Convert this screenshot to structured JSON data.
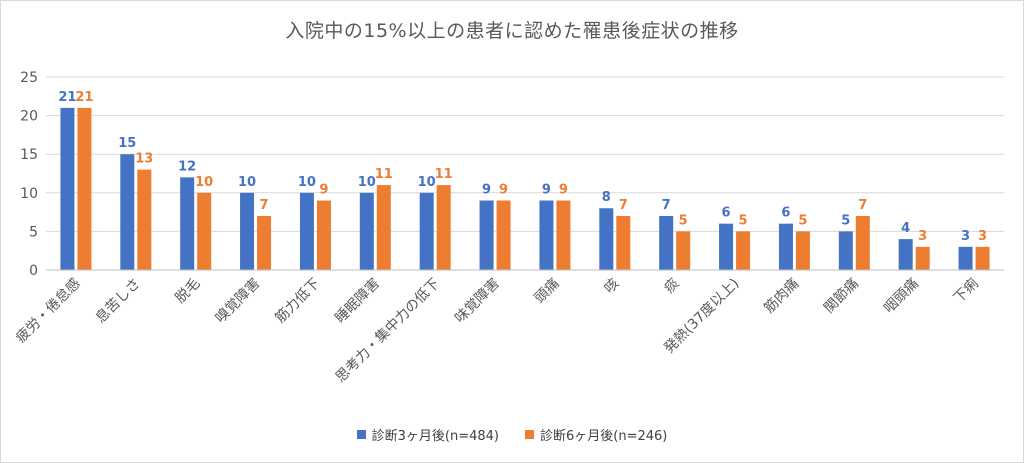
{
  "chart_data": {
    "type": "bar",
    "title": "入院中の15%以上の患者に認めた罹患後症状の推移",
    "categories": [
      "疲労・倦怠感",
      "息苦しさ",
      "脱毛",
      "嗅覚障害",
      "筋力低下",
      "睡眠障害",
      "思考力・集中力の低下",
      "味覚障害",
      "頭痛",
      "咳",
      "痰",
      "発熱(37度以上)",
      "筋肉痛",
      "関節痛",
      "咽頭痛",
      "下痢"
    ],
    "series": [
      {
        "name": "診断3ヶ月後(n=484)",
        "color": "#4472c4",
        "values": [
          21,
          15,
          12,
          10,
          10,
          10,
          10,
          9,
          9,
          8,
          7,
          6,
          6,
          5,
          4,
          3
        ]
      },
      {
        "name": "診断6ヶ月後(n=246)",
        "color": "#ed7d31",
        "values": [
          21,
          13,
          10,
          7,
          9,
          11,
          11,
          9,
          9,
          7,
          5,
          5,
          5,
          7,
          3,
          3
        ]
      }
    ],
    "ylim": [
      0,
      25
    ],
    "yticks": [
      0,
      5,
      10,
      15,
      20,
      25
    ],
    "grid": true,
    "legend": "bottom",
    "xlabel": "",
    "ylabel": ""
  }
}
